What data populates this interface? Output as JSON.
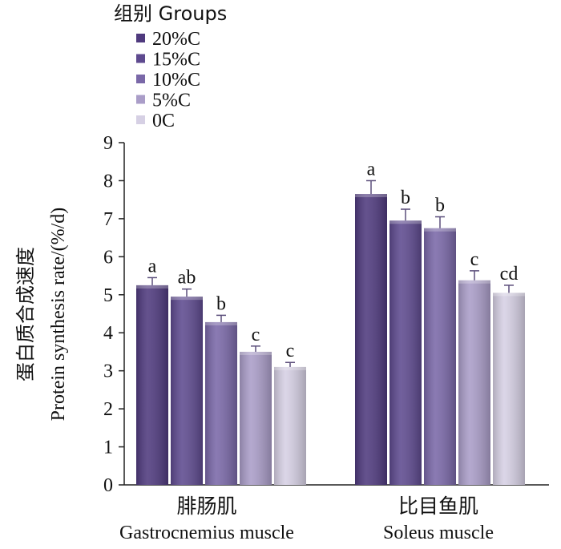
{
  "chart_data": {
    "type": "bar",
    "legend_title": "组别 Groups",
    "legend_placement": "top-left",
    "categories": [
      {
        "cn": "腓肠肌",
        "en": "Gastrocnemius muscle"
      },
      {
        "cn": "比目鱼肌",
        "en": "Soleus muscle"
      }
    ],
    "ylabel_cn": "蛋白质合成速度",
    "ylabel_en": "Protein synthesis rate/(%/d)",
    "ylim": [
      0,
      9
    ],
    "yticks": [
      "0",
      "1",
      "2",
      "3",
      "4",
      "5",
      "6",
      "7",
      "8",
      "9"
    ],
    "grid": false,
    "series": [
      {
        "name": "20%C",
        "color": "#4f3a7e",
        "values": [
          5.25,
          7.65
        ],
        "errors": [
          0.2,
          0.35
        ],
        "letters": [
          "a",
          "a"
        ]
      },
      {
        "name": "15%C",
        "color": "#5e4a8f",
        "values": [
          4.95,
          6.95
        ],
        "errors": [
          0.2,
          0.3
        ],
        "letters": [
          "ab",
          "b"
        ]
      },
      {
        "name": "10%C",
        "color": "#7a68a8",
        "values": [
          4.28,
          6.75
        ],
        "errors": [
          0.18,
          0.3
        ],
        "letters": [
          "b",
          "b"
        ]
      },
      {
        "name": "5%C",
        "color": "#aa9dc8",
        "values": [
          3.5,
          5.38
        ],
        "errors": [
          0.15,
          0.25
        ],
        "letters": [
          "c",
          "c"
        ]
      },
      {
        "name": "0C",
        "color": "#d6d0e4",
        "values": [
          3.1,
          5.05
        ],
        "errors": [
          0.12,
          0.2
        ],
        "letters": [
          "c",
          "cd"
        ]
      }
    ]
  }
}
